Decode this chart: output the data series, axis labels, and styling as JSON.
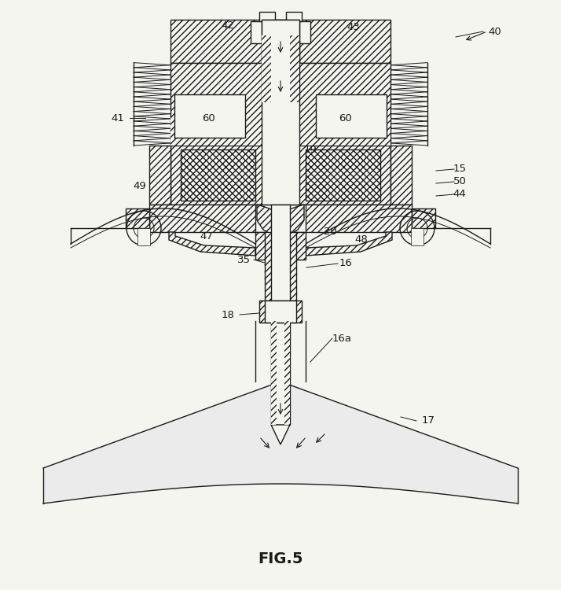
{
  "title": "FIG.5",
  "bg_color": "#f5f5f0",
  "line_color": "#1a1a1a",
  "fig_width": 7.14,
  "fig_height": 7.5,
  "dpi": 100
}
